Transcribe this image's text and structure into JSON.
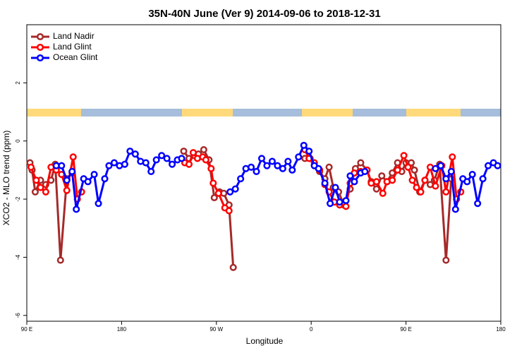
{
  "chart_data": {
    "type": "line",
    "title": "35N-40N June (Ver 9)   2014-09-06 to 2018-12-31",
    "x_label": "Longitude",
    "y_label": "XCO2 - MLO trend (ppm)",
    "xlim": [
      90,
      540
    ],
    "xticks": [
      {
        "value": 90,
        "label": "90 E"
      },
      {
        "value": 180,
        "label": "180"
      },
      {
        "value": 270,
        "label": "90 W"
      },
      {
        "value": 360,
        "label": "0"
      },
      {
        "value": 450,
        "label": "90 E"
      },
      {
        "value": 540,
        "label": "180"
      }
    ],
    "ylim": [
      -6.2,
      4.0
    ],
    "yticks": [
      -6,
      -4,
      -2,
      0,
      2
    ],
    "legend": "top-left",
    "series": [
      {
        "name": "Land Nadir",
        "color": "#a52a2a",
        "x": [
          93,
          95,
          98,
          103,
          108,
          113,
          117,
          122,
          128,
          133,
          null,
          239,
          244,
          249,
          253,
          258,
          263,
          268,
          273,
          277,
          282,
          286,
          null,
          354,
          359,
          363,
          368,
          373,
          377,
          381,
          386,
          391,
          397,
          402,
          407,
          413,
          417,
          422,
          427,
          432,
          437,
          442,
          446,
          450,
          455,
          458,
          463,
          468,
          473,
          477,
          482,
          488,
          493
        ],
        "values": [
          -0.75,
          -1.0,
          -1.75,
          -1.35,
          -1.5,
          -1.35,
          -0.8,
          -4.1,
          -1.3,
          -1.1,
          null,
          -0.35,
          -0.6,
          -0.5,
          -0.45,
          -0.3,
          -0.65,
          -1.95,
          -1.75,
          -1.8,
          -2.2,
          -4.35,
          null,
          -0.6,
          -0.6,
          -0.85,
          -1.05,
          -1.3,
          -0.9,
          -1.6,
          -1.75,
          -2.2,
          -1.65,
          -0.95,
          -0.75,
          -1.0,
          -1.4,
          -1.65,
          -1.2,
          -1.4,
          -1.1,
          -0.75,
          -1.05,
          -0.75,
          -0.75,
          -1.0,
          -1.75,
          -1.35,
          -1.5,
          -1.35,
          -0.8,
          -4.1,
          -1.3
        ]
      },
      {
        "name": "Land Glint",
        "color": "#ff0000",
        "x": [
          94,
          99,
          103,
          108,
          113,
          118,
          123,
          128,
          134,
          138,
          142,
          null,
          240,
          244,
          248,
          252,
          257,
          260,
          265,
          267,
          272,
          278,
          282,
          null,
          354,
          358,
          363,
          368,
          373,
          377,
          382,
          387,
          393,
          397,
          401,
          407,
          413,
          417,
          422,
          428,
          432,
          437,
          442,
          448,
          452,
          456,
          460,
          464,
          468,
          473,
          478,
          484,
          488,
          494,
          498,
          502
        ],
        "values": [
          -0.9,
          -1.35,
          -1.6,
          -1.75,
          -0.9,
          -1.0,
          -1.15,
          -1.7,
          -0.55,
          -2.0,
          -1.75,
          null,
          -0.75,
          -0.8,
          -0.4,
          -0.6,
          -0.55,
          -0.65,
          -0.95,
          -1.45,
          -1.8,
          -2.3,
          -2.4,
          null,
          -0.3,
          -0.6,
          -0.75,
          -1.0,
          -1.5,
          -1.75,
          -2.1,
          -2.2,
          -2.25,
          -1.45,
          -1.1,
          -1.05,
          -1.0,
          -1.45,
          -1.4,
          -1.8,
          -1.4,
          -1.35,
          -1.0,
          -0.5,
          -0.9,
          -1.35,
          -1.6,
          -1.75,
          -1.35,
          -0.9,
          -1.55,
          -0.85,
          -1.75,
          -0.55,
          -2.0,
          -1.75
        ]
      },
      {
        "name": "Ocean Glint",
        "color": "#0000ff",
        "x": [
          118,
          123,
          128,
          133,
          137,
          144,
          148,
          154,
          158,
          164,
          168,
          173,
          178,
          183,
          188,
          193,
          198,
          203,
          208,
          213,
          218,
          223,
          228,
          233,
          237,
          null,
          283,
          288,
          293,
          298,
          303,
          308,
          313,
          318,
          323,
          328,
          333,
          338,
          342,
          348,
          353,
          358,
          363,
          367,
          373,
          378,
          383,
          387,
          393,
          397,
          401,
          407,
          411,
          null,
          478,
          483,
          488,
          493,
          497,
          504,
          508,
          513,
          518,
          523,
          528,
          533,
          537
        ],
        "values": [
          -0.85,
          -0.85,
          -1.35,
          -1.05,
          -2.35,
          -1.3,
          -1.4,
          -1.15,
          -2.15,
          -1.3,
          -0.85,
          -0.75,
          -0.85,
          -0.8,
          -0.35,
          -0.45,
          -0.7,
          -0.75,
          -1.05,
          -0.65,
          -0.5,
          -0.6,
          -0.8,
          -0.65,
          -0.6,
          null,
          -1.75,
          -1.65,
          -1.3,
          -0.95,
          -0.9,
          -1.05,
          -0.6,
          -0.85,
          -0.7,
          -0.85,
          -0.95,
          -0.7,
          -1.0,
          -0.55,
          -0.15,
          -0.35,
          -0.85,
          -0.95,
          -1.45,
          -2.15,
          -1.6,
          -2.1,
          -2.05,
          -1.2,
          -1.4,
          -1.1,
          -1.05,
          null,
          -0.95,
          -0.85,
          -1.3,
          -1.05,
          -2.35,
          -1.3,
          -1.4,
          -1.15,
          -2.15,
          -1.3,
          -0.85,
          -0.75,
          -0.85
        ]
      }
    ]
  }
}
